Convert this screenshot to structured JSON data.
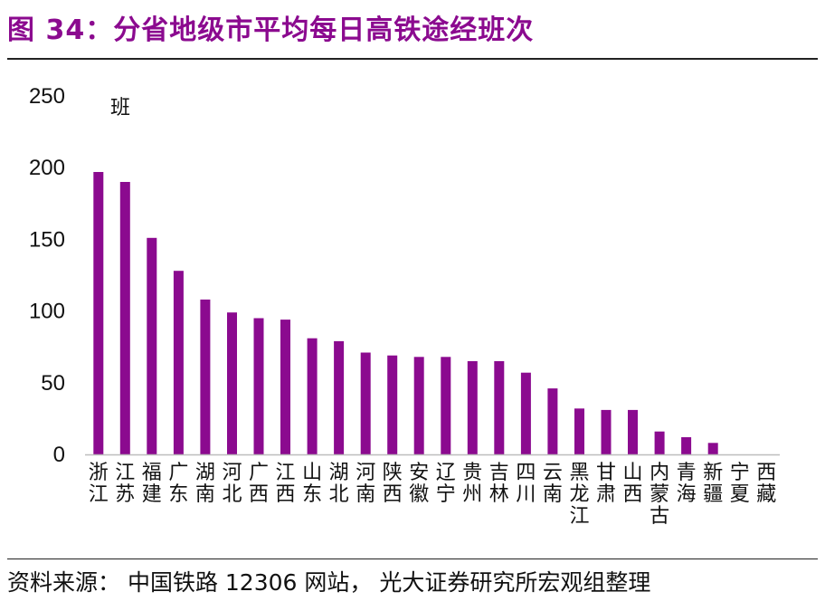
{
  "figure": {
    "title": "图 34：分省地级市平均每日高铁途经班次",
    "source": "资料来源：  中国铁路 12306 网站， 光大证券研究所宏观组整理"
  },
  "colors": {
    "bar": "#8b0a8f",
    "title": "#8b0a8f",
    "axis": "#bdbdbd"
  },
  "chart_data": {
    "type": "bar",
    "title": "",
    "xlabel": "",
    "ylabel": "班",
    "ylim": [
      0,
      250
    ],
    "yticks": [
      0,
      50,
      100,
      150,
      200,
      250
    ],
    "grid": false,
    "categories": [
      "浙江",
      "江苏",
      "福建",
      "广东",
      "湖南",
      "河北",
      "广西",
      "江西",
      "山东",
      "湖北",
      "河南",
      "陕西",
      "安徽",
      "辽宁",
      "贵州",
      "吉林",
      "四川",
      "云南",
      "黑龙江",
      "甘肃",
      "山西",
      "内蒙古",
      "青海",
      "新疆",
      "宁夏",
      "西藏"
    ],
    "values": [
      197,
      190,
      151,
      128,
      108,
      99,
      95,
      94,
      81,
      79,
      71,
      69,
      68,
      68,
      65,
      65,
      57,
      46,
      32,
      31,
      31,
      16,
      12,
      8,
      0,
      0
    ]
  }
}
